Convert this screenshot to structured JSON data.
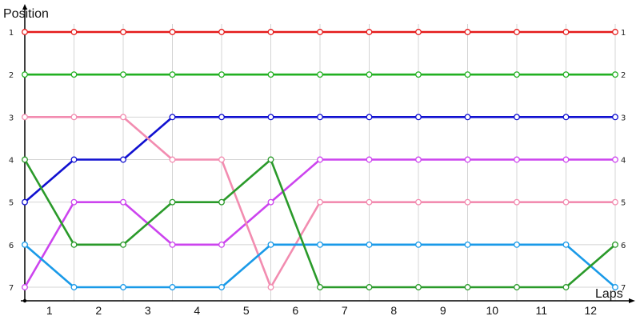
{
  "chart_data": {
    "type": "line",
    "xlabel": "Laps",
    "ylabel": "Position",
    "x_nodes": [
      0,
      1,
      2,
      3,
      4,
      5,
      6,
      7,
      8,
      9,
      10,
      11,
      12
    ],
    "laps": [
      "1",
      "2",
      "3",
      "4",
      "5",
      "6",
      "7",
      "8",
      "9",
      "10",
      "11",
      "12"
    ],
    "positions": [
      "1",
      "2",
      "3",
      "4",
      "5",
      "6",
      "7"
    ],
    "ylim": [
      1,
      7
    ],
    "y_inverted": true,
    "grid": true,
    "series": [
      {
        "color": "#e41b1b",
        "values": [
          1,
          1,
          1,
          1,
          1,
          1,
          1,
          1,
          1,
          1,
          1,
          1,
          1
        ]
      },
      {
        "color": "#22b022",
        "values": [
          2,
          2,
          2,
          2,
          2,
          2,
          2,
          2,
          2,
          2,
          2,
          2,
          2
        ]
      },
      {
        "color": "#1010d0",
        "values": [
          5,
          4,
          4,
          3,
          3,
          3,
          3,
          3,
          3,
          3,
          3,
          3,
          3
        ]
      },
      {
        "color": "#cc44ee",
        "values": [
          7,
          5,
          5,
          6,
          6,
          5,
          4,
          4,
          4,
          4,
          4,
          4,
          4
        ]
      },
      {
        "color": "#f28cb0",
        "values": [
          3,
          3,
          3,
          4,
          4,
          7,
          5,
          5,
          5,
          5,
          5,
          5,
          5
        ]
      },
      {
        "color": "#1a9ae8",
        "values": [
          6,
          7,
          7,
          7,
          7,
          6,
          6,
          6,
          6,
          6,
          6,
          6,
          7
        ]
      },
      {
        "color": "#2a9a2a",
        "values": [
          4,
          6,
          6,
          5,
          5,
          4,
          7,
          7,
          7,
          7,
          7,
          7,
          6
        ]
      }
    ]
  }
}
